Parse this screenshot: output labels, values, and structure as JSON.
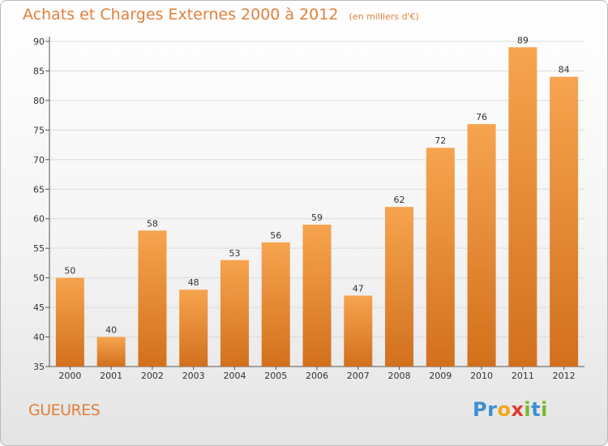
{
  "header": {
    "title": "Achats et Charges Externes 2000 à 2012",
    "subtitle": "(en milliers d'€)"
  },
  "footer": {
    "place": "GUEURES",
    "logo_letters": [
      {
        "ch": "P",
        "color": "#3a8fd6"
      },
      {
        "ch": "r",
        "color": "#3a8fd6"
      },
      {
        "ch": "o",
        "color": "#f2a71b"
      },
      {
        "ch": "x",
        "color": "#e23b2e"
      },
      {
        "ch": "i",
        "color": "#7ab929"
      },
      {
        "ch": "t",
        "color": "#3a8fd6"
      },
      {
        "ch": "i",
        "color": "#7ab929"
      }
    ]
  },
  "colors": {
    "bar_top": "#f7a44f",
    "bar_bottom": "#d2701d",
    "title": "#e0803c",
    "grid": "#dcdcdc"
  },
  "chart_data": {
    "type": "bar",
    "categories": [
      "2000",
      "2001",
      "2002",
      "2003",
      "2004",
      "2005",
      "2006",
      "2007",
      "2008",
      "2009",
      "2010",
      "2011",
      "2012"
    ],
    "values": [
      50,
      40,
      58,
      48,
      53,
      56,
      59,
      47,
      62,
      72,
      76,
      89,
      84
    ],
    "title": "Achats et Charges Externes 2000 à 2012",
    "subtitle": "(en milliers d'€)",
    "xlabel": "",
    "ylabel": "",
    "ylim": [
      35,
      90
    ],
    "yticks": [
      35,
      40,
      45,
      50,
      55,
      60,
      65,
      70,
      75,
      80,
      85,
      90
    ],
    "grid": true,
    "data_labels": true
  }
}
